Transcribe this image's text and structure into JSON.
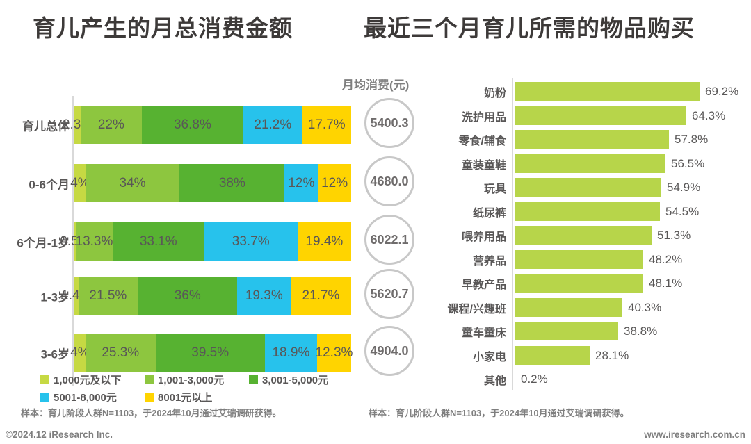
{
  "chart_data": [
    {
      "type": "bar",
      "stacked": true,
      "orientation": "horizontal",
      "title": "育儿产生的月总消费金额",
      "unit": "%",
      "xlim": [
        0,
        100
      ],
      "categories": [
        "育儿总体",
        "0-6个月",
        "6个月-1岁",
        "1-3岁",
        "3-6岁"
      ],
      "series": [
        {
          "name": "1,000元及以下",
          "color": "#c6d943",
          "values": [
            2.3,
            4,
            0.5,
            1.4,
            4
          ]
        },
        {
          "name": "1,001-3,000元",
          "color": "#8dc63f",
          "values": [
            22,
            34,
            13.3,
            21.5,
            25.3
          ]
        },
        {
          "name": "3,001-5,000元",
          "color": "#57b231",
          "values": [
            36.8,
            38,
            33.1,
            36,
            39.5
          ]
        },
        {
          "name": "5001-8,000元",
          "color": "#27c2ec",
          "values": [
            21.2,
            12,
            33.7,
            19.3,
            18.9
          ]
        },
        {
          "name": "8001元以上",
          "color": "#ffd400",
          "values": [
            17.7,
            12,
            19.4,
            21.7,
            12.3
          ]
        }
      ],
      "annotations": {
        "header": "月均消费(元)",
        "values": [
          "5400.3",
          "4680.0",
          "6022.1",
          "5620.7",
          "4904.0"
        ]
      }
    },
    {
      "type": "bar",
      "orientation": "horizontal",
      "title": "最近三个月育儿所需的物品购买",
      "unit": "%",
      "xlim": [
        0,
        100
      ],
      "bar_color": "#b7d54a",
      "categories": [
        "奶粉",
        "洗护用品",
        "零食/辅食",
        "童装童鞋",
        "玩具",
        "纸尿裤",
        "喂养用品",
        "营养品",
        "早教产品",
        "课程/兴趣班",
        "童车童床",
        "小家电",
        "其他"
      ],
      "values": [
        69.2,
        64.3,
        57.8,
        56.5,
        54.9,
        54.5,
        51.3,
        48.2,
        48.1,
        40.3,
        38.8,
        28.1,
        0.2
      ]
    }
  ],
  "footnotes": {
    "left_sample": "样本：育儿阶段人群N=1103，于2024年10月通过艾瑞调研获得。",
    "right_sample": "样本：育儿阶段人群N=1103，于2024年10月通过艾瑞调研获得。",
    "copyright": "©2024.12 iResearch Inc.",
    "website": "www.iresearch.com.cn"
  }
}
